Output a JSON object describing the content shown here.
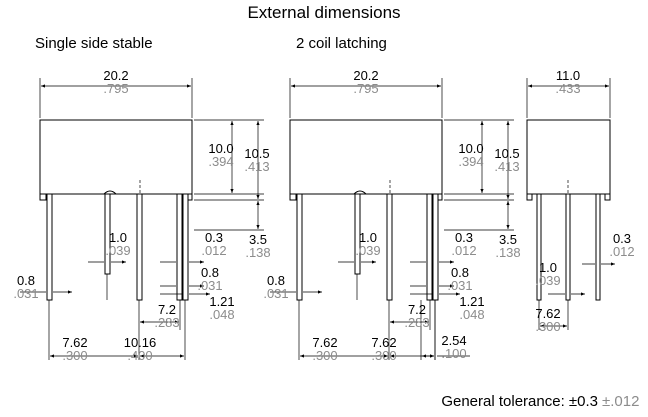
{
  "title": "External dimensions",
  "views": [
    {
      "label": "Single side stable",
      "dims": [
        {
          "mm": "20.2",
          "inch": ".795"
        },
        {
          "mm": "10.0",
          "inch": ".394"
        },
        {
          "mm": "10.5",
          "inch": ".413"
        },
        {
          "mm": "1.0",
          "inch": ".039"
        },
        {
          "mm": "0.3",
          "inch": ".012"
        },
        {
          "mm": "3.5",
          "inch": ".138"
        },
        {
          "mm": "0.8",
          "inch": ".031"
        },
        {
          "mm": "0.8",
          "inch": ".031"
        },
        {
          "mm": "7.2",
          "inch": ".283"
        },
        {
          "mm": "1.21",
          "inch": ".048"
        },
        {
          "mm": "7.62",
          "inch": ".300"
        },
        {
          "mm": "10.16",
          "inch": ".400"
        }
      ]
    },
    {
      "label": "2 coil latching",
      "dims": [
        {
          "mm": "20.2",
          "inch": ".795"
        },
        {
          "mm": "10.0",
          "inch": ".394"
        },
        {
          "mm": "10.5",
          "inch": ".413"
        },
        {
          "mm": "1.0",
          "inch": ".039"
        },
        {
          "mm": "0.3",
          "inch": ".012"
        },
        {
          "mm": "3.5",
          "inch": ".138"
        },
        {
          "mm": "0.8",
          "inch": ".031"
        },
        {
          "mm": "0.8",
          "inch": ".031"
        },
        {
          "mm": "7.2",
          "inch": ".283"
        },
        {
          "mm": "1.21",
          "inch": ".048"
        },
        {
          "mm": "7.62",
          "inch": ".300"
        },
        {
          "mm": "7.62",
          "inch": ".300"
        },
        {
          "mm": "2.54",
          "inch": ".100"
        }
      ]
    },
    {
      "dims": [
        {
          "mm": "11.0",
          "inch": ".433"
        },
        {
          "mm": "0.3",
          "inch": ".012"
        },
        {
          "mm": "1.0",
          "inch": ".039"
        },
        {
          "mm": "7.62",
          "inch": ".300"
        }
      ]
    }
  ],
  "tolerance": {
    "label": "General tolerance: ±0.3",
    "inch": "±.012"
  }
}
